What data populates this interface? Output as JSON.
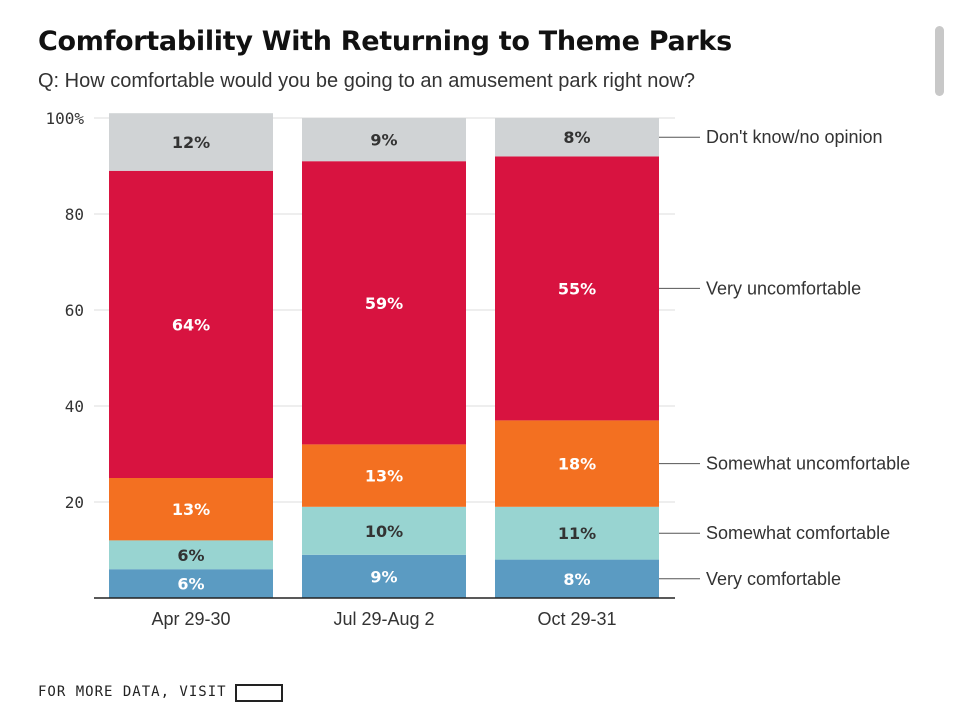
{
  "header": {
    "title": "Comfortability With Returning to Theme Parks",
    "subtitle": "Q: How comfortable would you be going to an amusement park right now?"
  },
  "footer": {
    "text": "FOR MORE DATA, VISIT"
  },
  "chart_data": {
    "type": "bar",
    "stacked": true,
    "categories": [
      "Apr 29-30",
      "Jul 29-Aug 2",
      "Oct 29-31"
    ],
    "series": [
      {
        "name": "Very comfortable",
        "values": [
          6,
          9,
          8
        ],
        "labels": [
          "6%",
          "9%",
          "8%"
        ],
        "color": "#5b9bc2",
        "label_color": "#ffffff"
      },
      {
        "name": "Somewhat comfortable",
        "values": [
          6,
          10,
          11
        ],
        "labels": [
          "6%",
          "10%",
          "11%"
        ],
        "color": "#98d4d1",
        "label_color": "#333333"
      },
      {
        "name": "Somewhat uncomfortable",
        "values": [
          13,
          13,
          18
        ],
        "labels": [
          "13%",
          "13%",
          "18%"
        ],
        "color": "#f37021",
        "label_color": "#ffffff"
      },
      {
        "name": "Very uncomfortable",
        "values": [
          64,
          59,
          55
        ],
        "labels": [
          "64%",
          "59%",
          "55%"
        ],
        "color": "#d81340",
        "label_color": "#ffffff"
      },
      {
        "name": "Don't know/no opinion",
        "values": [
          12,
          9,
          8
        ],
        "labels": [
          "12%",
          "9%",
          "8%"
        ],
        "color": "#d0d3d5",
        "label_color": "#333333"
      }
    ],
    "y_ticks": [
      "20",
      "40",
      "60",
      "80",
      "100%"
    ],
    "y_tick_values": [
      20,
      40,
      60,
      80,
      100
    ],
    "ylim": [
      0,
      100
    ],
    "grid": true,
    "legend_placement": "right, aligned to last bar segments"
  }
}
